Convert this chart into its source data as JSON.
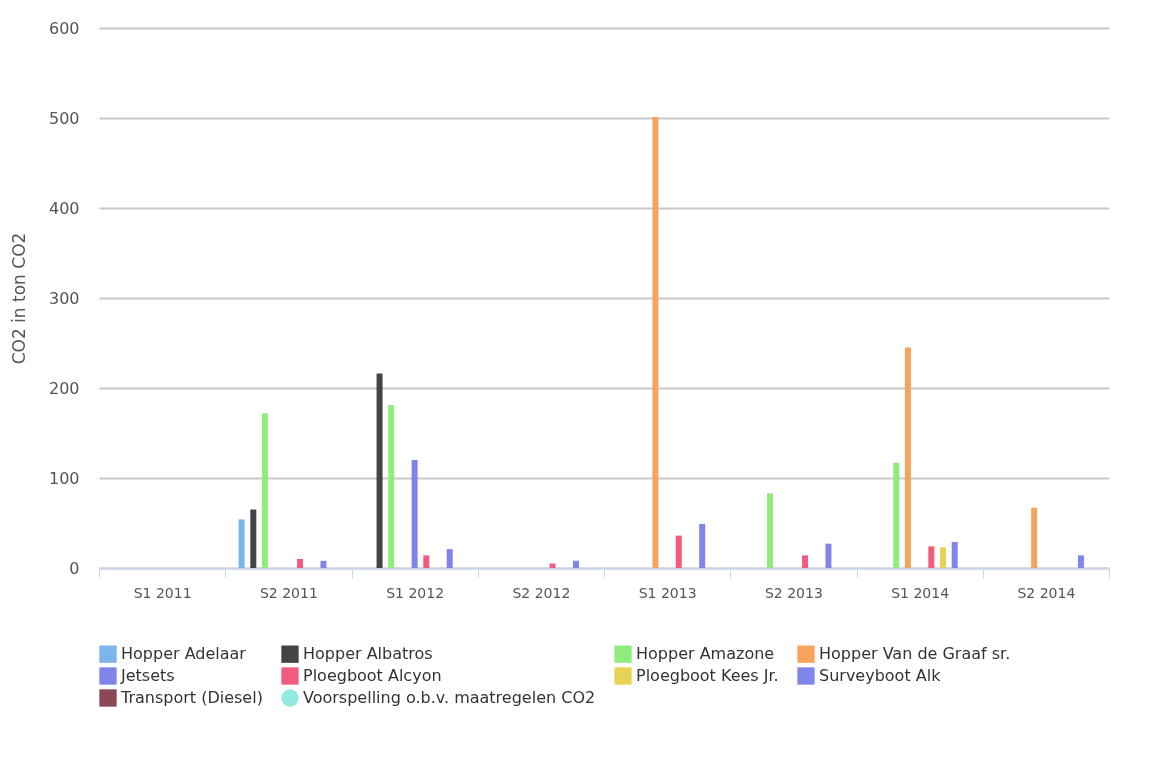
{
  "chart_data": {
    "type": "bar",
    "ylabel": "CO2 in ton CO2",
    "categories": [
      "S1 2011",
      "S2 2011",
      "S1 2012",
      "S2 2012",
      "S1 2013",
      "S2 2013",
      "S1 2014",
      "S2 2014"
    ],
    "series": [
      {
        "name": "Hopper Adelaar",
        "color": "#7cb5ec",
        "values": [
          null,
          54,
          null,
          null,
          null,
          null,
          null,
          null
        ]
      },
      {
        "name": "Hopper Albatros",
        "color": "#434348",
        "values": [
          null,
          65,
          216,
          null,
          null,
          null,
          null,
          null
        ]
      },
      {
        "name": "Hopper Amazone",
        "color": "#90ed7d",
        "values": [
          null,
          172,
          181,
          null,
          null,
          83,
          117,
          null
        ]
      },
      {
        "name": "Hopper Van de Graaf sr.",
        "color": "#f7a35c",
        "values": [
          null,
          null,
          null,
          null,
          501,
          null,
          245,
          67
        ]
      },
      {
        "name": "Jetsets",
        "color": "#8085e9",
        "values": [
          null,
          null,
          120,
          null,
          null,
          null,
          null,
          null
        ]
      },
      {
        "name": "Ploegboot Alcyon",
        "color": "#f15c80",
        "values": [
          null,
          10,
          14,
          5,
          36,
          14,
          24,
          0
        ]
      },
      {
        "name": "Ploegboot Kees Jr.",
        "color": "#e4d354",
        "values": [
          null,
          null,
          null,
          null,
          null,
          null,
          23,
          null
        ]
      },
      {
        "name": "Surveyboot Alk",
        "color": "#8085e9",
        "values": [
          null,
          8,
          21,
          8,
          49,
          27,
          29,
          14
        ]
      },
      {
        "name": "Transport (Diesel)",
        "color": "#8d4653",
        "values": [
          null,
          null,
          null,
          null,
          null,
          null,
          null,
          null
        ]
      },
      {
        "name": "Voorspelling o.b.v. maatregelen CO2",
        "type": "line",
        "color": "#91e8e1",
        "values": [
          null,
          null,
          null,
          null,
          null,
          null,
          null,
          null
        ]
      }
    ],
    "ylim": [
      0,
      600
    ],
    "yticks": [
      0,
      100,
      200,
      300,
      400,
      500,
      600
    ],
    "grid": "y",
    "legend": "bottom",
    "marker": "circle"
  }
}
